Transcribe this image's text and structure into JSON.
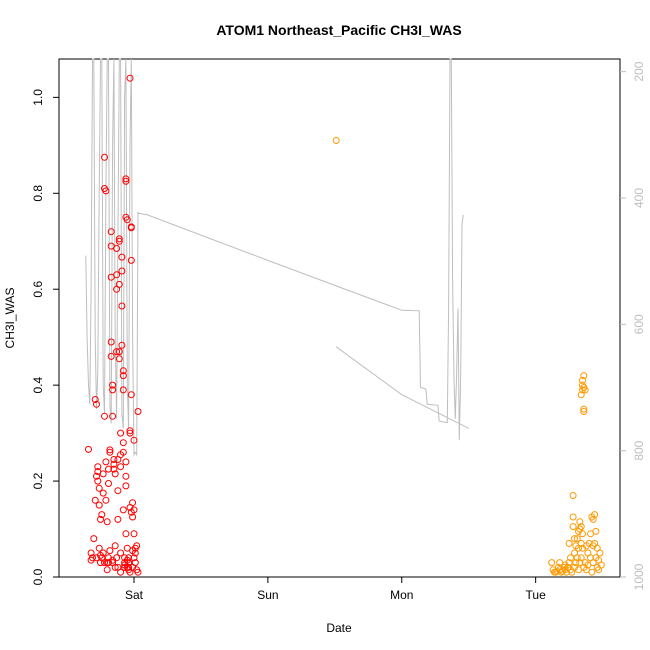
{
  "chart_data": {
    "type": "scatter",
    "title": "ATOM1 Northeast_Pacific CH3I_WAS",
    "xlabel": "Date",
    "ylabel": "CH3I_WAS",
    "x_ticks": [
      "Sat",
      "Sun",
      "Mon",
      "Tue"
    ],
    "xlim": [
      -2.06,
      2.13
    ],
    "ylim": [
      0.0,
      1.08
    ],
    "y_ticks": [
      "0.0",
      "0.2",
      "0.4",
      "0.6",
      "0.8",
      "1.0"
    ],
    "y_tick_values": [
      0.0,
      0.2,
      0.4,
      0.6,
      0.8,
      1.0
    ],
    "y2_ticks": [
      "200",
      "400",
      "600",
      "800",
      "1000"
    ],
    "y2_tick_values": [
      200,
      400,
      600,
      800,
      1000
    ],
    "y2_range": [
      1000,
      180
    ],
    "grid": false,
    "legend": "none",
    "colors": {
      "series1": "#ff0000",
      "series2": "#ff9900",
      "pressure": "#bebebe",
      "axis": "#000000",
      "axis2": "#bebebe"
    },
    "series": [
      {
        "color": "#ff0000",
        "points": [
          [
            -1.84,
            0.266
          ],
          [
            -1.82,
            0.05
          ],
          [
            -1.82,
            0.035
          ],
          [
            -1.81,
            0.04
          ],
          [
            -1.8,
            0.08
          ],
          [
            -1.79,
            0.16
          ],
          [
            -1.79,
            0.37
          ],
          [
            -1.78,
            0.36
          ],
          [
            -1.78,
            0.21
          ],
          [
            -1.77,
            0.23
          ],
          [
            -1.77,
            0.22
          ],
          [
            -1.77,
            0.2
          ],
          [
            -1.76,
            0.185
          ],
          [
            -1.76,
            0.15
          ],
          [
            -1.76,
            0.06
          ],
          [
            -1.75,
            0.03
          ],
          [
            -1.75,
            0.12
          ],
          [
            -1.74,
            0.13
          ],
          [
            -1.74,
            0.04
          ],
          [
            -1.73,
            0.215
          ],
          [
            -1.73,
            0.175
          ],
          [
            -1.73,
            0.05
          ],
          [
            -1.72,
            0.335
          ],
          [
            -1.72,
            0.875
          ],
          [
            -1.72,
            0.81
          ],
          [
            -1.71,
            0.805
          ],
          [
            -1.71,
            0.24
          ],
          [
            -1.71,
            0.16
          ],
          [
            -1.7,
            0.115
          ],
          [
            -1.7,
            0.03
          ],
          [
            -1.7,
            0.015
          ],
          [
            -1.69,
            0.225
          ],
          [
            -1.69,
            0.195
          ],
          [
            -1.69,
            0.04
          ],
          [
            -1.68,
            0.265
          ],
          [
            -1.68,
            0.26
          ],
          [
            -1.68,
            0.055
          ],
          [
            -1.67,
            0.72
          ],
          [
            -1.67,
            0.69
          ],
          [
            -1.67,
            0.625
          ],
          [
            -1.67,
            0.49
          ],
          [
            -1.67,
            0.46
          ],
          [
            -1.66,
            0.4
          ],
          [
            -1.66,
            0.39
          ],
          [
            -1.66,
            0.335
          ],
          [
            -1.66,
            0.03
          ],
          [
            -1.65,
            0.245
          ],
          [
            -1.65,
            0.235
          ],
          [
            -1.65,
            0.225
          ],
          [
            -1.64,
            0.215
          ],
          [
            -1.64,
            0.065
          ],
          [
            -1.64,
            0.02
          ],
          [
            -1.63,
            0.685
          ],
          [
            -1.63,
            0.63
          ],
          [
            -1.63,
            0.6
          ],
          [
            -1.63,
            0.47
          ],
          [
            -1.62,
            0.245
          ],
          [
            -1.62,
            0.18
          ],
          [
            -1.62,
            0.12
          ],
          [
            -1.62,
            0.02
          ],
          [
            -1.61,
            0.705
          ],
          [
            -1.61,
            0.7
          ],
          [
            -1.61,
            0.61
          ],
          [
            -1.61,
            0.47
          ],
          [
            -1.61,
            0.455
          ],
          [
            -1.6,
            0.3
          ],
          [
            -1.6,
            0.255
          ],
          [
            -1.6,
            0.23
          ],
          [
            -1.6,
            0.05
          ],
          [
            -1.59,
            0.667
          ],
          [
            -1.59,
            0.638
          ],
          [
            -1.59,
            0.565
          ],
          [
            -1.59,
            0.483
          ],
          [
            -1.58,
            0.43
          ],
          [
            -1.58,
            0.42
          ],
          [
            -1.58,
            0.39
          ],
          [
            -1.58,
            0.28
          ],
          [
            -1.58,
            0.26
          ],
          [
            -1.58,
            0.14
          ],
          [
            -1.57,
            0.04
          ],
          [
            -1.57,
            0.03
          ],
          [
            -1.57,
            0.02
          ],
          [
            -1.56,
            0.83
          ],
          [
            -1.56,
            0.825
          ],
          [
            -1.56,
            0.75
          ],
          [
            -1.56,
            0.24
          ],
          [
            -1.56,
            0.21
          ],
          [
            -1.56,
            0.19
          ],
          [
            -1.56,
            0.09
          ],
          [
            -1.55,
            0.745
          ],
          [
            -1.55,
            0.06
          ],
          [
            -1.55,
            0.035
          ],
          [
            -1.54,
            0.03
          ],
          [
            -1.54,
            0.02
          ],
          [
            -1.54,
            0.015
          ],
          [
            -1.54,
            0.04
          ],
          [
            -1.53,
            0.305
          ],
          [
            -1.53,
            0.3
          ],
          [
            -1.53,
            0.145
          ],
          [
            -1.53,
            0.01
          ],
          [
            -1.52,
            0.73
          ],
          [
            -1.52,
            0.728
          ],
          [
            -1.52,
            0.66
          ],
          [
            -1.52,
            0.38
          ],
          [
            -1.52,
            0.135
          ],
          [
            -1.51,
            0.155
          ],
          [
            -1.51,
            0.125
          ],
          [
            -1.51,
            0.055
          ],
          [
            -1.51,
            0.02
          ],
          [
            -1.5,
            0.04
          ],
          [
            -1.5,
            0.285
          ],
          [
            -1.5,
            0.14
          ],
          [
            -1.5,
            0.09
          ],
          [
            -1.49,
            0.06
          ],
          [
            -1.49,
            0.03
          ],
          [
            -1.49,
            0.05
          ],
          [
            -1.48,
            0.065
          ],
          [
            -1.48,
            0.015
          ],
          [
            -1.47,
            0.345
          ],
          [
            -1.47,
            0.01
          ],
          [
            -1.53,
            1.04
          ],
          [
            -1.55,
            0.02
          ],
          [
            -1.57,
            0.025
          ],
          [
            -1.6,
            0.01
          ],
          [
            -1.63,
            0.04
          ],
          [
            -1.66,
            0.035
          ],
          [
            -1.69,
            0.03
          ],
          [
            -1.72,
            0.03
          ],
          [
            -1.75,
            0.045
          ],
          [
            -1.78,
            0.04
          ]
        ]
      },
      {
        "color": "#ff9900",
        "points": [
          [
            0.01,
            0.91
          ],
          [
            1.62,
            0.03
          ],
          [
            1.63,
            0.015
          ],
          [
            1.64,
            0.01
          ],
          [
            1.65,
            0.01
          ],
          [
            1.66,
            0.012
          ],
          [
            1.67,
            0.02
          ],
          [
            1.68,
            0.015
          ],
          [
            1.68,
            0.03
          ],
          [
            1.69,
            0.01
          ],
          [
            1.7,
            0.012
          ],
          [
            1.71,
            0.02
          ],
          [
            1.72,
            0.015
          ],
          [
            1.72,
            0.025
          ],
          [
            1.73,
            0.01
          ],
          [
            1.74,
            0.02
          ],
          [
            1.75,
            0.03
          ],
          [
            1.75,
            0.07
          ],
          [
            1.76,
            0.04
          ],
          [
            1.76,
            0.015
          ],
          [
            1.77,
            0.01
          ],
          [
            1.78,
            0.17
          ],
          [
            1.78,
            0.125
          ],
          [
            1.78,
            0.105
          ],
          [
            1.79,
            0.08
          ],
          [
            1.79,
            0.05
          ],
          [
            1.79,
            0.02
          ],
          [
            1.8,
            0.065
          ],
          [
            1.8,
            0.03
          ],
          [
            1.81,
            0.08
          ],
          [
            1.81,
            0.04
          ],
          [
            1.82,
            0.095
          ],
          [
            1.82,
            0.06
          ],
          [
            1.82,
            0.015
          ],
          [
            1.83,
            0.115
          ],
          [
            1.83,
            0.1
          ],
          [
            1.83,
            0.03
          ],
          [
            1.84,
            0.105
          ],
          [
            1.84,
            0.07
          ],
          [
            1.84,
            0.04
          ],
          [
            1.84,
            0.38
          ],
          [
            1.85,
            0.41
          ],
          [
            1.85,
            0.4
          ],
          [
            1.85,
            0.39
          ],
          [
            1.85,
            0.09
          ],
          [
            1.85,
            0.06
          ],
          [
            1.86,
            0.42
          ],
          [
            1.86,
            0.395
          ],
          [
            1.86,
            0.35
          ],
          [
            1.86,
            0.345
          ],
          [
            1.86,
            0.02
          ],
          [
            1.87,
            0.39
          ],
          [
            1.87,
            0.03
          ],
          [
            1.88,
            0.065
          ],
          [
            1.88,
            0.015
          ],
          [
            1.89,
            0.05
          ],
          [
            1.89,
            0.025
          ],
          [
            1.9,
            0.07
          ],
          [
            1.91,
            0.09
          ],
          [
            1.91,
            0.04
          ],
          [
            1.92,
            0.125
          ],
          [
            1.92,
            0.01
          ],
          [
            1.93,
            0.12
          ],
          [
            1.93,
            0.065
          ],
          [
            1.93,
            0.03
          ],
          [
            1.94,
            0.13
          ],
          [
            1.94,
            0.07
          ],
          [
            1.95,
            0.095
          ],
          [
            1.95,
            0.04
          ],
          [
            1.96,
            0.02
          ],
          [
            1.96,
            0.06
          ],
          [
            1.97,
            0.035
          ],
          [
            1.97,
            0.015
          ],
          [
            1.98,
            0.05
          ],
          [
            1.99,
            0.025
          ]
        ]
      }
    ],
    "pressure_line": [
      [
        -1.86,
        0.67
      ],
      [
        -1.85,
        0.5
      ],
      [
        -1.84,
        0.4
      ],
      [
        -1.83,
        0.36
      ],
      [
        -1.82,
        0.6
      ],
      [
        -1.81,
        1.1
      ],
      [
        -1.8,
        1.1
      ],
      [
        -1.79,
        0.5
      ],
      [
        -1.78,
        0.35
      ],
      [
        -1.77,
        0.43
      ],
      [
        -1.76,
        0.8
      ],
      [
        -1.75,
        1.1
      ],
      [
        -1.74,
        1.1
      ],
      [
        -1.73,
        0.4
      ],
      [
        -1.72,
        0.34
      ],
      [
        -1.71,
        0.8
      ],
      [
        -1.7,
        1.1
      ],
      [
        -1.69,
        1.1
      ],
      [
        -1.68,
        0.36
      ],
      [
        -1.67,
        0.32
      ],
      [
        -1.66,
        0.9
      ],
      [
        -1.65,
        1.1
      ],
      [
        -1.64,
        0.5
      ],
      [
        -1.63,
        0.33
      ],
      [
        -1.62,
        0.7
      ],
      [
        -1.61,
        1.1
      ],
      [
        -1.6,
        1.1
      ],
      [
        -1.59,
        0.34
      ],
      [
        -1.58,
        0.31
      ],
      [
        -1.57,
        1.0
      ],
      [
        -1.56,
        1.1
      ],
      [
        -1.55,
        0.4
      ],
      [
        -1.54,
        0.31
      ],
      [
        -1.53,
        0.9
      ],
      [
        -1.52,
        1.1
      ],
      [
        -1.51,
        0.5
      ],
      [
        -1.5,
        0.255
      ],
      [
        -1.49,
        0.26
      ],
      [
        -1.48,
        0.255
      ],
      [
        -1.47,
        0.76
      ],
      [
        -1.46,
        0.758
      ],
      [
        -1.4,
        0.755
      ],
      [
        -0.5,
        0.66
      ],
      [
        0.0,
        0.608
      ],
      [
        0.5,
        0.556
      ],
      [
        0.63,
        0.555
      ],
      [
        0.64,
        0.395
      ],
      [
        0.68,
        0.392
      ],
      [
        0.69,
        0.36
      ],
      [
        0.77,
        0.358
      ],
      [
        0.78,
        0.325
      ],
      [
        0.84,
        0.322
      ],
      [
        0.85,
        0.56
      ],
      [
        0.86,
        1.1
      ],
      [
        0.87,
        1.1
      ],
      [
        0.88,
        0.62
      ],
      [
        0.89,
        0.41
      ],
      [
        0.9,
        0.33
      ],
      [
        0.91,
        0.43
      ],
      [
        0.92,
        0.56
      ],
      [
        0.93,
        0.285
      ],
      [
        0.94,
        0.42
      ],
      [
        0.95,
        0.735
      ],
      [
        0.96,
        0.755
      ]
    ],
    "pressure_line2": [
      [
        0.01,
        0.48
      ],
      [
        0.5,
        0.38
      ],
      [
        1.0,
        0.31
      ]
    ]
  }
}
